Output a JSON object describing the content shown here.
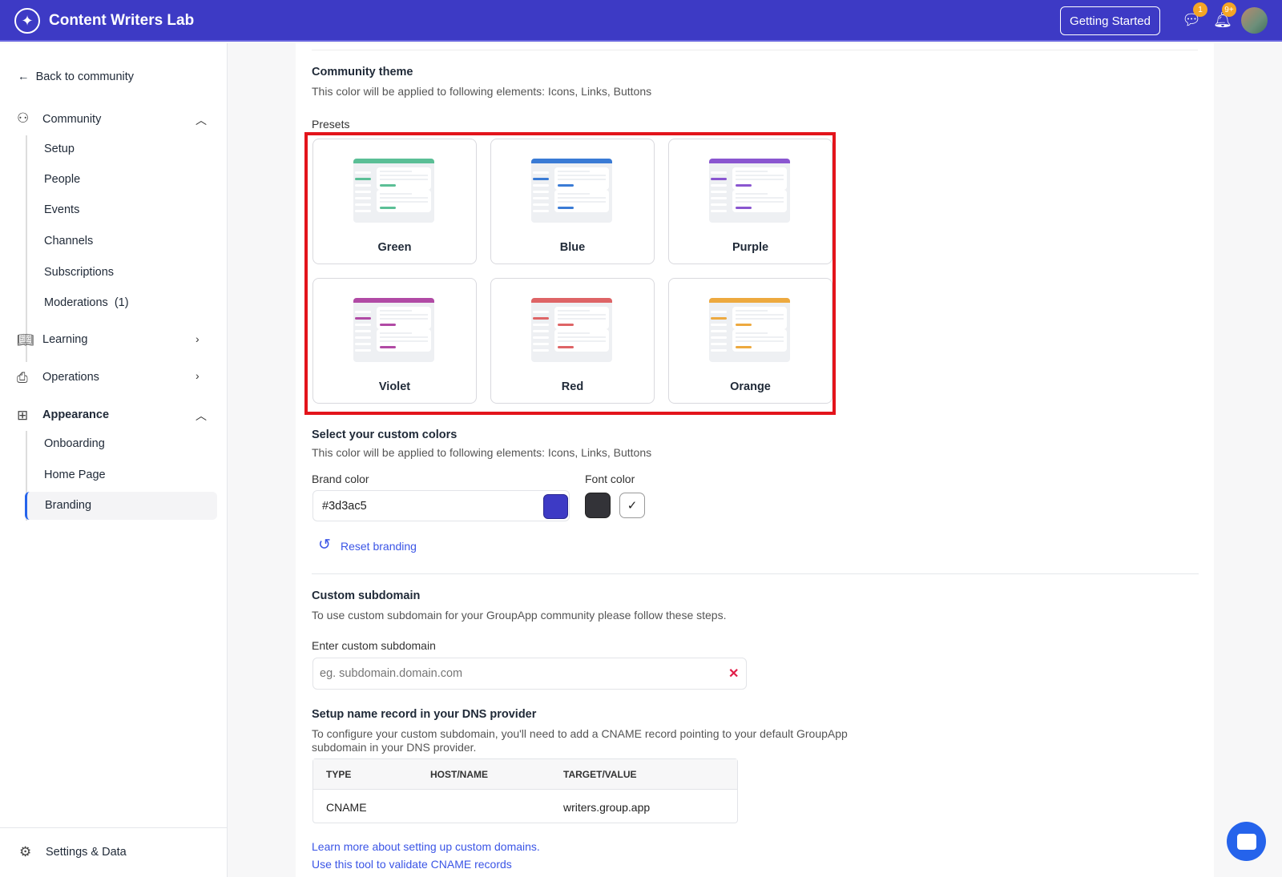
{
  "header": {
    "app_title": "Content Writers Lab",
    "getting_started": "Getting Started",
    "messages_badge": "1",
    "notifications_badge": "9+",
    "brand_color": "#3d3ac5"
  },
  "sidebar": {
    "back": "Back to community",
    "community": {
      "label": "Community",
      "items": [
        "Setup",
        "People",
        "Events",
        "Channels",
        "Subscriptions",
        "Moderations  (1)"
      ]
    },
    "learning": "Learning",
    "operations": "Operations",
    "appearance": {
      "label": "Appearance",
      "items": [
        "Onboarding",
        "Home Page",
        "Branding"
      ],
      "active": "Branding"
    },
    "settings": "Settings & Data"
  },
  "theme": {
    "title": "Community theme",
    "desc": "This color will be applied to following elements: Icons, Links, Buttons",
    "presets_label": "Presets",
    "presets": [
      {
        "name": "Green",
        "color": "#5bbf96"
      },
      {
        "name": "Blue",
        "color": "#3a7bd5"
      },
      {
        "name": "Purple",
        "color": "#8a56d0"
      },
      {
        "name": "Violet",
        "color": "#b14aa5"
      },
      {
        "name": "Red",
        "color": "#de6466"
      },
      {
        "name": "Orange",
        "color": "#eda93f"
      }
    ]
  },
  "custom": {
    "title": "Select your custom colors",
    "desc": "This color will be applied to following elements: Icons, Links, Buttons",
    "brand_label": "Brand color",
    "brand_value": "#3d3ac5",
    "font_label": "Font color",
    "font_dark": "#333338",
    "font_light": "#ffffff",
    "reset": "Reset branding"
  },
  "subdomain": {
    "title": "Custom subdomain",
    "desc": "To use custom subdomain for your GroupApp community please follow these steps.",
    "label": "Enter custom subdomain",
    "placeholder": "eg. subdomain.domain.com",
    "value": ""
  },
  "dns": {
    "title": "Setup name record in your DNS provider",
    "desc1": "To configure your custom subdomain, you'll need to add a CNAME record pointing to your default GroupApp",
    "desc2": "subdomain in your DNS provider.",
    "headers": [
      "TYPE",
      "HOST/NAME",
      "TARGET/VALUE"
    ],
    "row": [
      "CNAME",
      "",
      "writers.group.app"
    ],
    "link1": "Learn more about setting up custom domains.",
    "link2": "Use this tool to validate CNAME records"
  }
}
